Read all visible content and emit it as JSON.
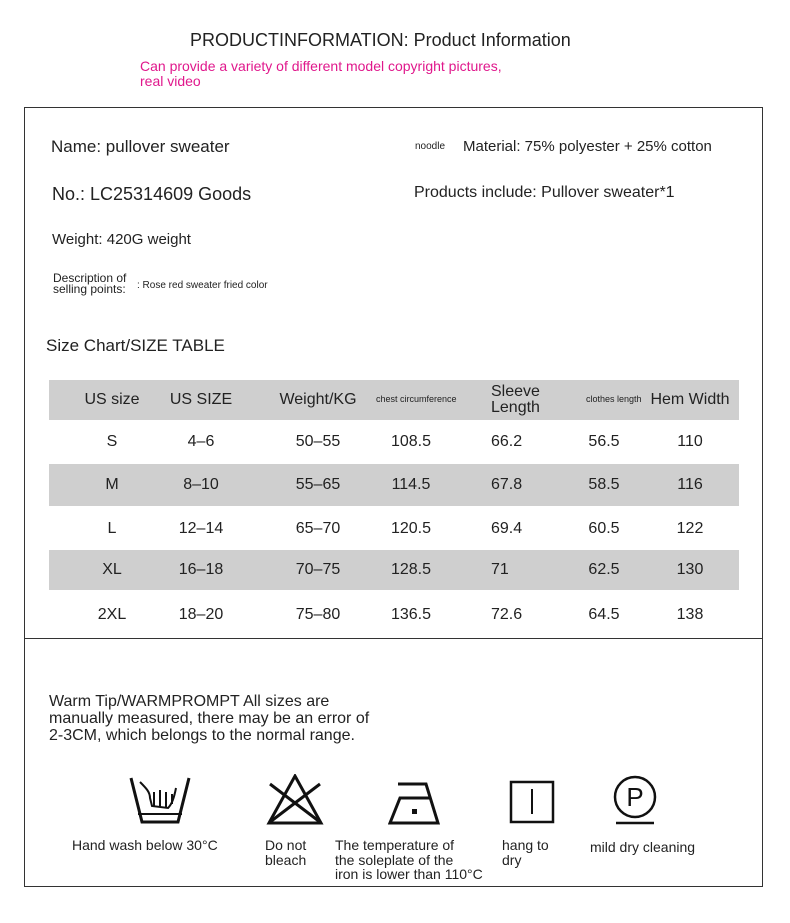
{
  "header": {
    "title": "PRODUCTINFORMATION: Product Information",
    "subtitle_line1": "Can provide a variety of different model copyright pictures,",
    "subtitle_line2": "real video",
    "accent": "#e0188c"
  },
  "info": {
    "name": "Name: pullover sweater",
    "no": "No.: LC25314609 Goods",
    "weight": "Weight: 420G weight",
    "desc_label_1": "Description of",
    "desc_label_2": "selling points:",
    "desc_value": ": Rose red sweater fried color",
    "noodle": "noodle",
    "material": "Material: 75% polyester + 25% cotton",
    "includes": "Products include: Pullover sweater*1"
  },
  "size_chart": {
    "title": "Size Chart/SIZE TABLE",
    "headers": [
      "US size",
      "US SIZE",
      "Weight/KG",
      "chest circumference",
      "Sleeve Length",
      "clothes length",
      "Hem Width"
    ],
    "rows": [
      [
        "S",
        "4–6",
        "50–55",
        "108.5",
        "66.2",
        "56.5",
        "110"
      ],
      [
        "M",
        "8–10",
        "55–65",
        "114.5",
        "67.8",
        "58.5",
        "116"
      ],
      [
        "L",
        "12–14",
        "65–70",
        "120.5",
        "69.4",
        "60.5",
        "122"
      ],
      [
        "XL",
        "16–18",
        "70–75",
        "128.5",
        "71",
        "62.5",
        "130"
      ],
      [
        "2XL",
        "18–20",
        "75–80",
        "136.5",
        "72.6",
        "64.5",
        "138"
      ]
    ]
  },
  "tip": {
    "line1": "Warm Tip/WARMPROMPT All sizes are",
    "line2": "manually measured, there may be an error of",
    "line3": "2-3CM, which belongs to the normal range."
  },
  "care": [
    {
      "icon": "hand-wash-icon",
      "l1": "Hand wash below 30°C",
      "l2": "",
      "l3": ""
    },
    {
      "icon": "no-bleach-icon",
      "l1": "Do not",
      "l2": "bleach",
      "l3": ""
    },
    {
      "icon": "iron-low-icon",
      "l1": "The temperature of",
      "l2": "the soleplate of the",
      "l3": "iron is lower than 110°C"
    },
    {
      "icon": "hang-dry-icon",
      "l1": "hang to",
      "l2": "dry",
      "l3": ""
    },
    {
      "icon": "dry-clean-p-icon",
      "l1": "mild dry cleaning",
      "l2": "",
      "l3": ""
    }
  ]
}
